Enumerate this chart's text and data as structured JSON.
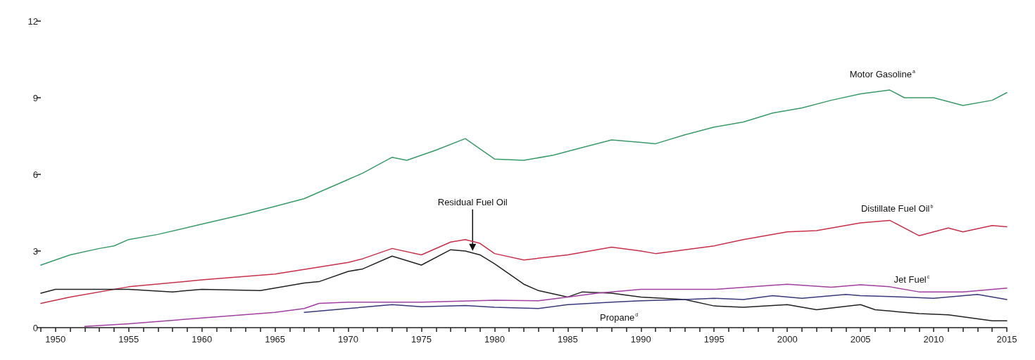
{
  "chart_data": {
    "type": "line",
    "xlim": [
      1949,
      2015
    ],
    "xticks": [
      {
        "value": 1949,
        "label": null
      },
      1950,
      {
        "value": 1951,
        "label": null
      },
      {
        "value": 1952,
        "label": null
      },
      {
        "value": 1953,
        "label": null
      },
      {
        "value": 1954,
        "label": null
      },
      1955,
      {
        "value": 1956,
        "label": null
      },
      {
        "value": 1957,
        "label": null
      },
      {
        "value": 1958,
        "label": null
      },
      {
        "value": 1959,
        "label": null
      },
      1960,
      {
        "value": 1961,
        "label": null
      },
      {
        "value": 1962,
        "label": null
      },
      {
        "value": 1963,
        "label": null
      },
      {
        "value": 1964,
        "label": null
      },
      1965,
      {
        "value": 1966,
        "label": null
      },
      {
        "value": 1967,
        "label": null
      },
      {
        "value": 1968,
        "label": null
      },
      {
        "value": 1969,
        "label": null
      },
      1970,
      {
        "value": 1971,
        "label": null
      },
      {
        "value": 1972,
        "label": null
      },
      {
        "value": 1973,
        "label": null
      },
      {
        "value": 1974,
        "label": null
      },
      1975,
      {
        "value": 1976,
        "label": null
      },
      {
        "value": 1977,
        "label": null
      },
      {
        "value": 1978,
        "label": null
      },
      {
        "value": 1979,
        "label": null
      },
      1980,
      {
        "value": 1981,
        "label": null
      },
      {
        "value": 1982,
        "label": null
      },
      {
        "value": 1983,
        "label": null
      },
      {
        "value": 1984,
        "label": null
      },
      1985,
      {
        "value": 1986,
        "label": null
      },
      {
        "value": 1987,
        "label": null
      },
      {
        "value": 1988,
        "label": null
      },
      {
        "value": 1989,
        "label": null
      },
      1990,
      {
        "value": 1991,
        "label": null
      },
      {
        "value": 1992,
        "label": null
      },
      {
        "value": 1993,
        "label": null
      },
      {
        "value": 1994,
        "label": null
      },
      1995,
      {
        "value": 1996,
        "label": null
      },
      {
        "value": 1997,
        "label": null
      },
      {
        "value": 1998,
        "label": null
      },
      {
        "value": 1999,
        "label": null
      },
      2000,
      {
        "value": 2001,
        "label": null
      },
      {
        "value": 2002,
        "label": null
      },
      {
        "value": 2003,
        "label": null
      },
      {
        "value": 2004,
        "label": null
      },
      2005,
      {
        "value": 2006,
        "label": null
      },
      {
        "value": 2007,
        "label": null
      },
      {
        "value": 2008,
        "label": null
      },
      {
        "value": 2009,
        "label": null
      },
      2010,
      {
        "value": 2011,
        "label": null
      },
      {
        "value": 2012,
        "label": null
      },
      {
        "value": 2013,
        "label": null
      },
      {
        "value": 2014,
        "label": null
      },
      2015
    ],
    "ylim": [
      0,
      12
    ],
    "yticks": [
      0,
      3,
      6,
      9,
      12
    ],
    "grid": false,
    "legend": false,
    "marker": "none",
    "line_style": "solid",
    "series": [
      {
        "name": "Motor Gasoline$^{a}$",
        "color": "#3a9a6a",
        "x": [
          1949,
          1951,
          1953,
          1954,
          1955,
          1957,
          1960,
          1963,
          1965,
          1967,
          1970,
          1971,
          1973,
          1974,
          1976,
          1978,
          1980,
          1982,
          1984,
          1986,
          1988,
          1990,
          1991,
          1993,
          1995,
          1997,
          1999,
          2001,
          2003,
          2005,
          2007,
          2008,
          2010,
          2012,
          2014,
          2015
        ],
        "values": [
          2.45,
          2.85,
          3.1,
          3.2,
          3.45,
          3.65,
          4.05,
          4.45,
          4.75,
          5.05,
          5.8,
          6.05,
          6.67,
          6.55,
          6.95,
          7.4,
          6.6,
          6.55,
          6.75,
          7.05,
          7.35,
          7.25,
          7.2,
          7.55,
          7.85,
          8.05,
          8.4,
          8.6,
          8.9,
          9.15,
          9.3,
          9.0,
          9.0,
          8.7,
          8.9,
          9.2
        ]
      },
      {
        "name": "Distillate Fuel Oil$^{b}$",
        "color": "#c8304a",
        "x": [
          1949,
          1951,
          1955,
          1960,
          1965,
          1970,
          1971,
          1973,
          1975,
          1977,
          1978,
          1979,
          1980,
          1982,
          1985,
          1988,
          1990,
          1991,
          1995,
          1997,
          2000,
          2002,
          2005,
          2007,
          2009,
          2011,
          2012,
          2014,
          2015
        ],
        "values": [
          0.95,
          1.2,
          1.6,
          1.87,
          2.1,
          2.55,
          2.7,
          3.1,
          2.85,
          3.35,
          3.45,
          3.3,
          2.9,
          2.65,
          2.85,
          3.15,
          3.0,
          2.9,
          3.2,
          3.45,
          3.75,
          3.8,
          4.1,
          4.2,
          3.6,
          3.9,
          3.75,
          4.0,
          3.95
        ]
      },
      {
        "name": "Residual Fuel Oil",
        "color": "#222222",
        "x": [
          1949,
          1950,
          1953,
          1955,
          1958,
          1960,
          1964,
          1967,
          1968,
          1970,
          1971,
          1973,
          1975,
          1977,
          1978,
          1979,
          1980,
          1982,
          1983,
          1985,
          1986,
          1988,
          1990,
          1993,
          1995,
          1997,
          2000,
          2002,
          2005,
          2006,
          2009,
          2011,
          2014,
          2015
        ],
        "values": [
          1.35,
          1.5,
          1.5,
          1.5,
          1.4,
          1.5,
          1.45,
          1.75,
          1.8,
          2.2,
          2.3,
          2.8,
          2.45,
          3.05,
          3.0,
          2.85,
          2.5,
          1.7,
          1.45,
          1.2,
          1.4,
          1.35,
          1.2,
          1.1,
          0.85,
          0.8,
          0.9,
          0.7,
          0.9,
          0.7,
          0.55,
          0.5,
          0.27,
          0.27
        ]
      },
      {
        "name": "Jet Fuel$^{c}$",
        "color": "#a040a0",
        "x": [
          1952,
          1955,
          1960,
          1965,
          1967,
          1968,
          1970,
          1975,
          1980,
          1983,
          1985,
          1987,
          1990,
          1995,
          2000,
          2003,
          2005,
          2007,
          2009,
          2012,
          2015
        ],
        "values": [
          0.05,
          0.15,
          0.38,
          0.6,
          0.75,
          0.95,
          1.0,
          1.0,
          1.07,
          1.05,
          1.2,
          1.35,
          1.5,
          1.5,
          1.7,
          1.58,
          1.68,
          1.6,
          1.4,
          1.4,
          1.55
        ]
      },
      {
        "name": "Propane$^{d}$",
        "color": "#3a3a7a",
        "x": [
          1967,
          1970,
          1973,
          1975,
          1978,
          1980,
          1983,
          1985,
          1988,
          1990,
          1993,
          1995,
          1997,
          1999,
          2001,
          2004,
          2005,
          2008,
          2010,
          2013,
          2015
        ],
        "values": [
          0.6,
          0.75,
          0.9,
          0.82,
          0.87,
          0.8,
          0.75,
          0.9,
          1.0,
          1.05,
          1.1,
          1.15,
          1.1,
          1.25,
          1.15,
          1.3,
          1.25,
          1.2,
          1.15,
          1.3,
          1.1
        ]
      }
    ]
  }
}
